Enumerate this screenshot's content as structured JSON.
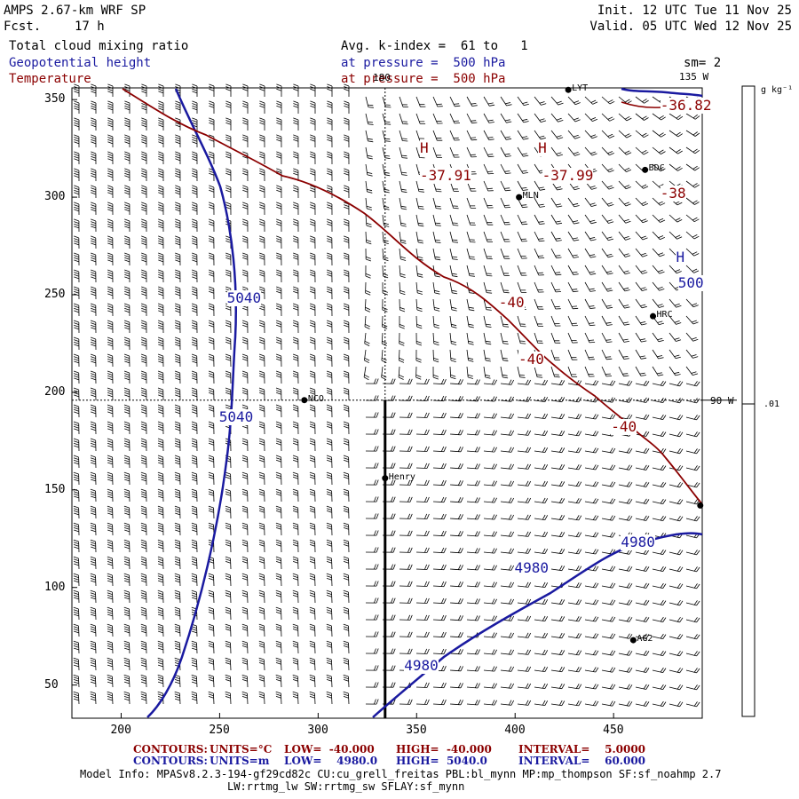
{
  "header": {
    "model": "AMPS 2.67-km WRF SP",
    "forecast_label": "Fcst.",
    "forecast_value": "17 h",
    "init": "Init. 12 UTC Tue 11 Nov 25",
    "valid": "Valid. 05 UTC Wed 12 Nov 25"
  },
  "fields": [
    {
      "name": "Total cloud mixing ratio",
      "level": "Avg. k-index =  61 to   1",
      "color": "#000000"
    },
    {
      "name": "Geopotential height",
      "level": "at pressure =  500 hPa",
      "color": "#1a1aa0"
    },
    {
      "name": "Temperature",
      "level": "at pressure =  500 hPa",
      "color": "#8b0000"
    }
  ],
  "smoothing": "sm= 2",
  "colorbar": {
    "unit": "g kg⁻¹",
    "value_label": ".01"
  },
  "axes": {
    "x_ticks": [
      "200",
      "250",
      "300",
      "350",
      "400",
      "450"
    ],
    "y_ticks": [
      "50",
      "100",
      "150",
      "200",
      "250",
      "300",
      "350"
    ],
    "xlim": [
      175,
      495
    ],
    "ylim": [
      33,
      356
    ]
  },
  "meridians": [
    {
      "label": "180",
      "grid_x": 334
    },
    {
      "label": "90 W",
      "grid_y": 196
    },
    {
      "label": "135 W"
    }
  ],
  "stations": [
    {
      "name": "NCO",
      "x": 293,
      "y": 196
    },
    {
      "name": "MLN",
      "x": 402,
      "y": 300
    },
    {
      "name": "BDC",
      "x": 466,
      "y": 314
    },
    {
      "name": "HRC",
      "x": 470,
      "y": 239
    },
    {
      "name": "Henry",
      "x": 334,
      "y": 156
    },
    {
      "name": "AG2",
      "x": 460,
      "y": 73
    },
    {
      "name": "LYT",
      "x": 427,
      "y": 355
    },
    {
      "name": "",
      "x": 494,
      "y": 142
    }
  ],
  "contour_labels": {
    "height": [
      {
        "text": "5040",
        "x": 260,
        "y": 248
      },
      {
        "text": "5040",
        "x": 256,
        "y": 187
      },
      {
        "text": "4980",
        "x": 460,
        "y": 123
      },
      {
        "text": "4980",
        "x": 406,
        "y": 110
      },
      {
        "text": "4980",
        "x": 350,
        "y": 60
      },
      {
        "text": "H",
        "x": 488,
        "y": 269
      },
      {
        "text": "500",
        "x": 489,
        "y": 256
      }
    ],
    "temperature": [
      {
        "text": "H",
        "x": 358,
        "y": 325
      },
      {
        "text": "-37.91",
        "x": 358,
        "y": 311
      },
      {
        "text": "H",
        "x": 418,
        "y": 325
      },
      {
        "text": "-37.99",
        "x": 420,
        "y": 311
      },
      {
        "text": "-36.82",
        "x": 480,
        "y": 347
      },
      {
        "text": "-38",
        "x": 480,
        "y": 302
      },
      {
        "text": "-40",
        "x": 398,
        "y": 246
      },
      {
        "text": "-40",
        "x": 408,
        "y": 217
      },
      {
        "text": "-40",
        "x": 455,
        "y": 182
      }
    ]
  },
  "footer": {
    "temp": {
      "contours": "CONTOURS:",
      "units": "UNITS=°C",
      "low": "LOW=  -40.000",
      "high": "HIGH=  -40.000",
      "interval": "INTERVAL=    5.0000"
    },
    "height": {
      "contours": "CONTOURS:",
      "units": "UNITS=m",
      "low": "LOW=    4980.0",
      "high": "HIGH=  5040.0",
      "interval": "INTERVAL=    60.000"
    },
    "model_info": "Model Info: MPASv8.2.3-194-gf29cd82c CU:cu_grell_freitas PBL:bl_mynn MP:mp_thompson SF:sf_noahmp 2.7",
    "model_info2": "LW:rrtmg_lw SW:rrtmg_sw SFLAY:sf_mynn"
  },
  "colors": {
    "height": "#1a1aa0",
    "temperature": "#8b0000",
    "frame": "#000000"
  }
}
